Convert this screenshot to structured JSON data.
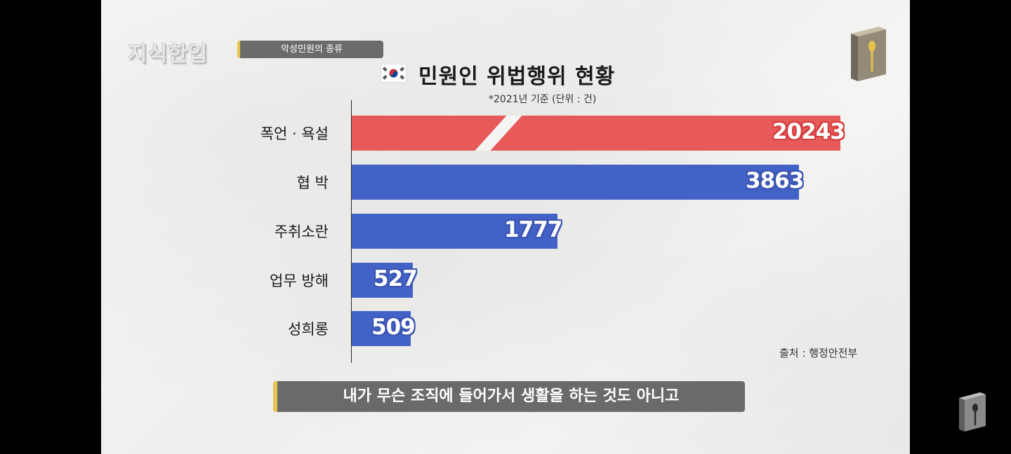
{
  "header": {
    "logo_text": "지식한입",
    "topic": "악성민원의 종류"
  },
  "chart_data": {
    "type": "bar",
    "orientation": "horizontal",
    "title": "민원인 위법행위 현황",
    "subtitle": "*2021년 기준  (단위 : 건)",
    "categories": [
      "폭언 · 욕설",
      "협 박",
      "주취소란",
      "업무 방해",
      "성희롱"
    ],
    "values": [
      20243,
      3863,
      1777,
      527,
      509
    ],
    "value_labels": [
      "20243",
      "3863",
      "1777",
      "527",
      "509"
    ],
    "colors": [
      "#e85a5a",
      "#4262c8",
      "#4262c8",
      "#4262c8",
      "#4262c8"
    ],
    "axis_break": "첫 막대 축 생략",
    "source": "출처 : 행정안전부"
  },
  "caption": "내가 무슨 조직에 들어가서 생활을 하는 것도 아니고",
  "icons": [
    "flag-icon",
    "book-spoon-icon",
    "corner-book-icon"
  ]
}
